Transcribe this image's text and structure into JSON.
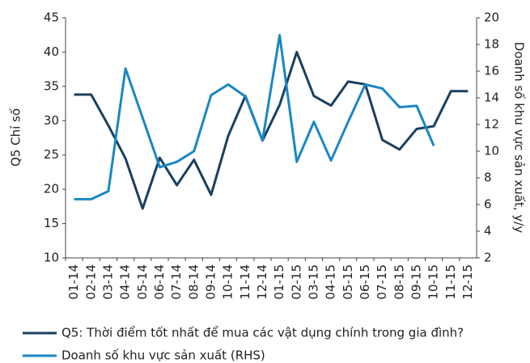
{
  "chart_data": {
    "type": "line",
    "categories": [
      "01-14",
      "02-14",
      "03-14",
      "04-14",
      "05-14",
      "06-14",
      "07-14",
      "08-14",
      "09-14",
      "10-14",
      "11-14",
      "12-14",
      "01-15",
      "02-15",
      "03-15",
      "04-15",
      "05-15",
      "06-15",
      "07-15",
      "08-15",
      "09-15",
      "10-15",
      "11-15",
      "12-15"
    ],
    "series": [
      {
        "name": "Q5: Thời điểm tốt nhất để mua các vật dụng chính trong gia đình?",
        "color": "#1b3f5e",
        "axis": "y",
        "values": [
          33.8,
          33.8,
          29.3,
          24.5,
          17.2,
          24.6,
          20.6,
          24.3,
          19.2,
          27.8,
          33.6,
          27.1,
          32.3,
          40.0,
          33.6,
          32.2,
          35.7,
          35.3,
          27.2,
          25.8,
          28.8,
          29.2,
          34.3,
          34.3
        ]
      },
      {
        "name": "Doanh số khu vực sản xuất (RHS)",
        "color": "#1a87c4",
        "axis": "y2",
        "values": [
          6.4,
          6.4,
          7.0,
          16.2,
          12.5,
          8.8,
          9.2,
          10.0,
          14.2,
          15.0,
          14.1,
          10.8,
          18.7,
          9.2,
          12.2,
          9.3,
          12.2,
          15.0,
          14.7,
          13.3,
          13.4,
          10.4,
          null,
          null
        ]
      }
    ],
    "ylabel": "Q5 Chỉ số",
    "y2label": "Doanh số khu vực sản xuất, y/y",
    "ylim": [
      10,
      45
    ],
    "yticks": [
      10,
      15,
      20,
      25,
      30,
      35,
      40,
      45
    ],
    "y2lim": [
      2,
      20
    ],
    "y2ticks": [
      2,
      4,
      6,
      8,
      10,
      12,
      14,
      16,
      18,
      20
    ],
    "grid": false,
    "legend": "bottom"
  }
}
